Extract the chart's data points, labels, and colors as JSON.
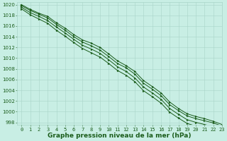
{
  "title": "",
  "xlabel": "Graphe pression niveau de la mer (hPa)",
  "xlim": [
    -0.5,
    23
  ],
  "ylim": [
    997.5,
    1020.5
  ],
  "yticks": [
    998,
    1000,
    1002,
    1004,
    1006,
    1008,
    1010,
    1012,
    1014,
    1016,
    1018,
    1020
  ],
  "xticks": [
    0,
    1,
    2,
    3,
    4,
    5,
    6,
    7,
    8,
    9,
    10,
    11,
    12,
    13,
    14,
    15,
    16,
    17,
    18,
    19,
    20,
    21,
    22,
    23
  ],
  "background_color": "#c8eee4",
  "grid_color": "#a8d4c8",
  "line_color": "#1a5c1a",
  "series": [
    [
      1020.0,
      1019.1,
      1018.4,
      1017.8,
      1016.6,
      1015.6,
      1014.4,
      1013.4,
      1012.8,
      1012.0,
      1010.8,
      1009.5,
      1008.6,
      1007.5,
      1005.8,
      1004.7,
      1003.5,
      1001.8,
      1000.6,
      999.6,
      999.1,
      998.7,
      998.2,
      997.6
    ],
    [
      1019.8,
      1018.9,
      1018.2,
      1017.5,
      1016.3,
      1015.2,
      1014.0,
      1013.0,
      1012.3,
      1011.5,
      1010.3,
      1009.0,
      1008.2,
      1007.0,
      1005.3,
      1004.2,
      1003.0,
      1001.3,
      1000.2,
      999.2,
      998.7,
      998.3,
      997.9,
      997.3
    ],
    [
      1019.5,
      1018.5,
      1017.8,
      1017.0,
      1015.8,
      1014.7,
      1013.5,
      1012.4,
      1011.7,
      1010.9,
      1009.7,
      1008.4,
      1007.5,
      1006.3,
      1004.6,
      1003.5,
      1002.3,
      1000.6,
      999.5,
      998.5,
      998.0,
      997.6,
      997.2,
      996.7
    ],
    [
      1019.2,
      1018.1,
      1017.3,
      1016.5,
      1015.2,
      1014.1,
      1012.9,
      1011.8,
      1011.0,
      1010.2,
      1009.0,
      1007.7,
      1006.8,
      1005.6,
      1003.9,
      1002.8,
      1001.6,
      999.9,
      998.8,
      997.8,
      997.3,
      996.9,
      996.5,
      996.0
    ]
  ],
  "marker": ">",
  "markersize": 2.0,
  "linewidth": 0.7,
  "xlabel_fontsize": 6.5,
  "tick_fontsize": 5.0,
  "xlabel_bold": true
}
